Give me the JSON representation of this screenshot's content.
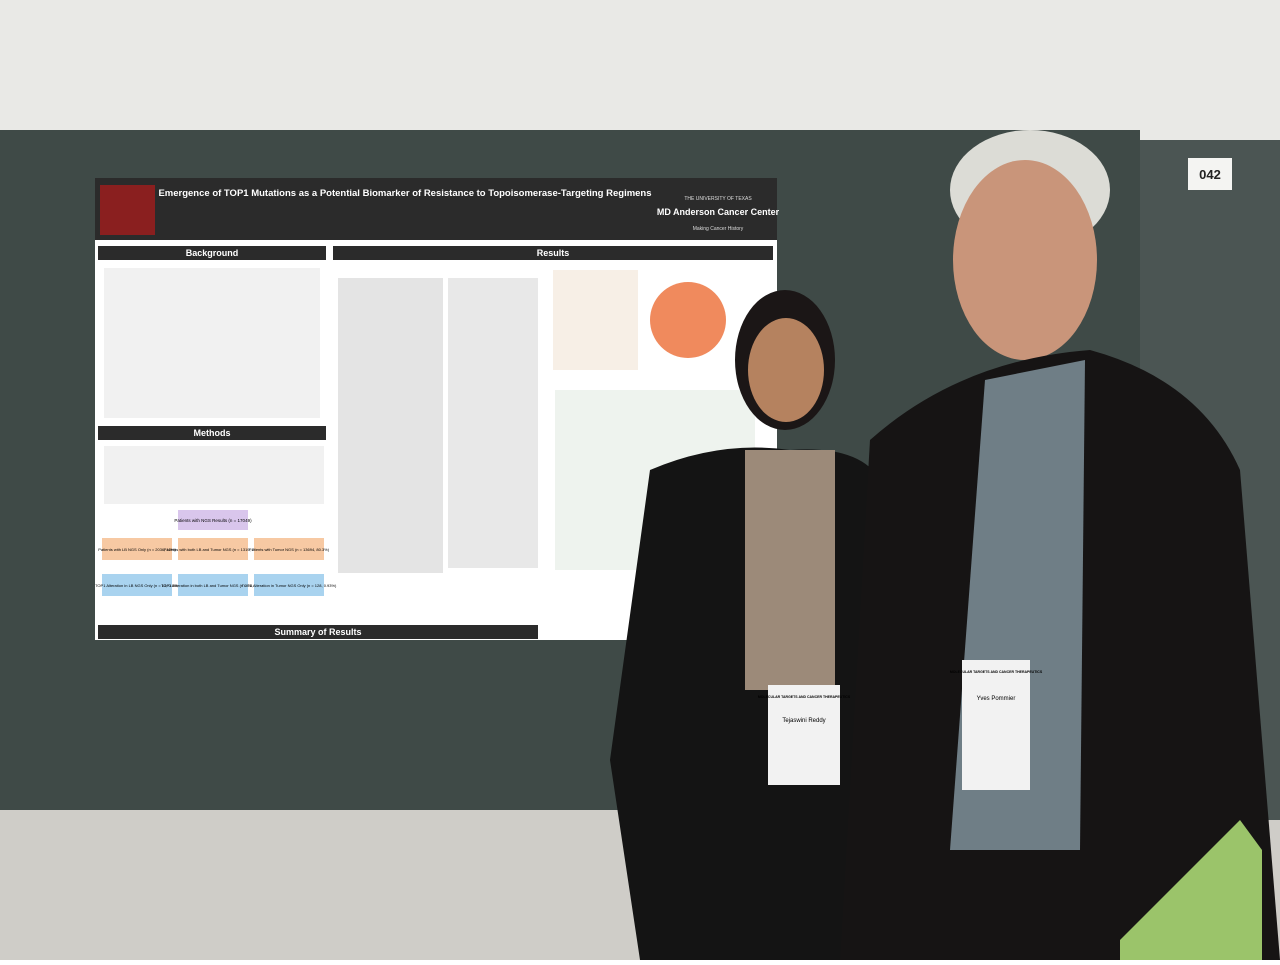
{
  "booth_number": "042",
  "poster": {
    "title": "Emergence of TOP1 Mutations as a Potential Biomarker of Resistance to Topoisomerase-Targeting Regimens",
    "institution": {
      "top": "THE UNIVERSITY OF TEXAS",
      "name": "MD Anderson Cancer Center",
      "tagline": "Making Cancer History"
    },
    "sections": {
      "background": "Background",
      "methods": "Methods",
      "results": "Results",
      "summary": "Summary of Results"
    },
    "flowchart": {
      "root": "Patients with NGS Results (n = 17049)",
      "level1": [
        "Patients with LB NGS Only (n = 2036, 12%)",
        "Patients with both LB and Tumor NGS (n = 1319, 7.7%)",
        "Patients with Tumor NGS (n = 13694, 80.3%)"
      ],
      "level2": [
        "TOP1 Alteration in LB NGS Only (n = 13, 0.6%)",
        "TOP1 Alteration in both LB and Tumor NGS (n = 18, 1.4%)",
        "TOP1 Alteration in Tumor NGS Only (n = 128, 0.93%)"
      ]
    }
  },
  "badges": [
    {
      "name": "Tejaswini Reddy",
      "event": "MOLECULAR TARGETS AND CANCER THERAPEUTICS"
    },
    {
      "name": "Yves Pommier",
      "event": "MOLECULAR TARGETS AND CANCER THERAPEUTICS"
    }
  ]
}
